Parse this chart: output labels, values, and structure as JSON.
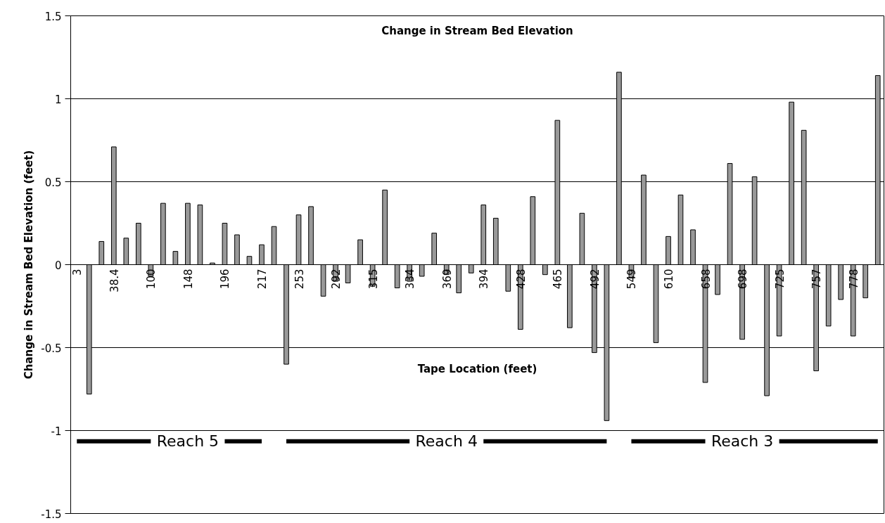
{
  "chart_data": {
    "type": "bar",
    "title": "Change in Stream Bed Elevation",
    "xlabel": "Tape Location (feet)",
    "ylabel": "Change in Stream Bed Elevation (feet)",
    "categories": [
      "3",
      null,
      null,
      "38.4",
      null,
      null,
      "100",
      null,
      null,
      "148",
      null,
      null,
      "196",
      null,
      null,
      "217",
      null,
      null,
      "253",
      null,
      null,
      "292",
      null,
      null,
      "315",
      null,
      null,
      "334",
      null,
      null,
      "369",
      null,
      null,
      "394",
      null,
      null,
      "428",
      null,
      null,
      "465",
      null,
      null,
      "492",
      null,
      null,
      "549",
      null,
      null,
      "610",
      null,
      null,
      "658",
      null,
      null,
      "698",
      null,
      null,
      "725",
      null,
      null,
      "757",
      null,
      null,
      "778",
      null,
      null
    ],
    "series": [
      {
        "color": "#999999",
        "values": [
          null,
          -0.78,
          0.14,
          0.71,
          0.16,
          0.25,
          -0.07,
          0.37,
          0.08,
          0.37,
          0.36,
          0.01,
          0.25,
          0.18,
          0.05,
          0.12,
          0.23,
          -0.6,
          0.3,
          0.35,
          -0.19,
          -0.1,
          -0.11,
          0.15,
          -0.13,
          0.45,
          -0.14,
          -0.1,
          -0.07,
          0.19,
          -0.06,
          -0.17,
          -0.05,
          0.36,
          0.28,
          -0.16,
          -0.39,
          0.41,
          -0.06,
          0.87,
          -0.38,
          0.31,
          -0.53,
          -0.94,
          1.16,
          -0.08,
          0.54,
          -0.47,
          0.17,
          0.42,
          0.21,
          -0.71,
          -0.18,
          0.61,
          -0.45,
          0.53,
          -0.79,
          -0.43,
          0.98,
          0.81,
          -0.64,
          -0.37,
          -0.21,
          -0.43,
          -0.2,
          1.14
        ]
      },
      {
        "type": "line",
        "color": "#000000",
        "values": [
          -1.065,
          -1.065,
          -1.065,
          -1.065,
          -1.065,
          -1.065,
          -1.065,
          null,
          null,
          null,
          null,
          null,
          -1.065,
          -1.065,
          -1.065,
          -1.065,
          null,
          -1.065,
          -1.065,
          -1.065,
          -1.065,
          -1.065,
          -1.065,
          -1.065,
          -1.065,
          -1.065,
          -1.065,
          -1.065,
          null,
          null,
          null,
          null,
          null,
          -1.065,
          -1.065,
          -1.065,
          -1.065,
          -1.065,
          -1.065,
          -1.065,
          -1.065,
          -1.065,
          -1.065,
          -1.065,
          null,
          -1.065,
          -1.065,
          -1.065,
          -1.065,
          -1.065,
          -1.065,
          -1.065,
          null,
          null,
          null,
          null,
          null,
          -1.065,
          -1.065,
          -1.065,
          -1.065,
          -1.065,
          -1.065,
          -1.065,
          -1.065,
          -1.065
        ]
      }
    ],
    "ylim": [
      -1.5,
      1.5
    ],
    "yticks": [
      -1.5,
      -1,
      -0.5,
      0,
      0.5,
      1,
      1.5
    ],
    "grid": "y",
    "annotations": [
      "Reach 5",
      "Reach 4",
      "Reach 3"
    ]
  }
}
